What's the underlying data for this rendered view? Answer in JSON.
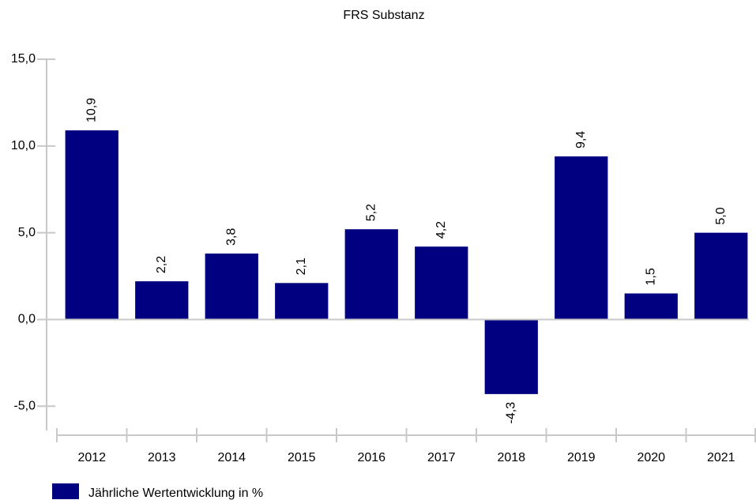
{
  "chart_data": {
    "type": "bar",
    "title": "FRS Substanz",
    "categories": [
      "2012",
      "2013",
      "2014",
      "2015",
      "2016",
      "2017",
      "2018",
      "2019",
      "2020",
      "2021"
    ],
    "series": [
      {
        "name": "Jährliche Wertentwicklung in %",
        "color": "#000080",
        "values": [
          10.9,
          2.2,
          3.8,
          2.1,
          5.2,
          4.2,
          -4.3,
          9.4,
          1.5,
          5.0
        ],
        "value_labels": [
          "10,9",
          "2,2",
          "3,8",
          "2,1",
          "5,2",
          "4,2",
          "-4,3",
          "9,4",
          "1,5",
          "5,0"
        ]
      }
    ],
    "ylim": [
      -6.4,
      15
    ],
    "yticks": [
      {
        "value": -5,
        "label": "-5,0"
      },
      {
        "value": 0,
        "label": "0,0"
      },
      {
        "value": 5,
        "label": "5,0"
      },
      {
        "value": 10,
        "label": "10,0"
      },
      {
        "value": 15,
        "label": "15,0"
      }
    ],
    "grid": false,
    "legend": "bottom-left"
  }
}
